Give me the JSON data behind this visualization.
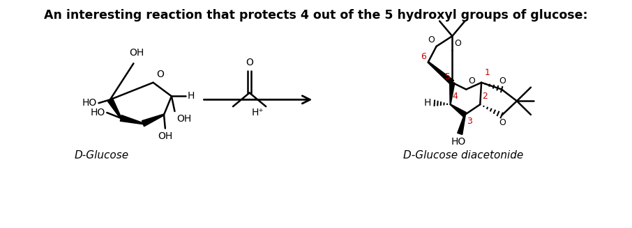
{
  "title": "An interesting reaction that protects 4 out of the 5 hydroxyl groups of glucose:",
  "title_fontsize": 12.5,
  "title_fontweight": "bold",
  "label_glucose": "D-Glucose",
  "label_product": "D-Glucose diacetonide",
  "label_reagent": "H⁺",
  "background_color": "#ffffff",
  "text_color": "#000000",
  "red_color": "#cc0000",
  "figsize": [
    9.06,
    3.28
  ],
  "dpi": 100
}
